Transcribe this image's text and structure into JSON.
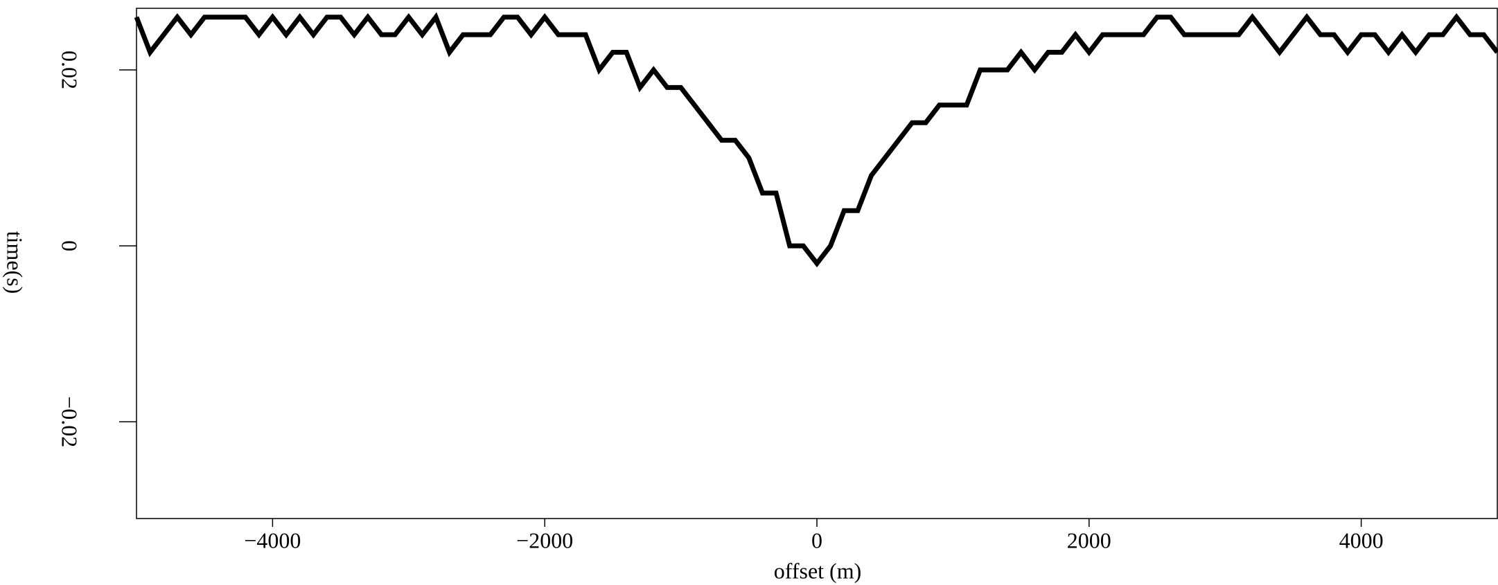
{
  "chart_data": {
    "type": "line",
    "xlabel": "offset (m)",
    "ylabel": "time(s)",
    "xlim": [
      -5000,
      5000
    ],
    "ylim": [
      -0.031,
      0.027
    ],
    "xticks": [
      {
        "value": -4000,
        "label": "−4000"
      },
      {
        "value": -2000,
        "label": "−2000"
      },
      0,
      2000,
      4000
    ],
    "yticks": [
      {
        "value": -0.02,
        "label": "−0.02"
      },
      0,
      0.02
    ],
    "x": [
      -5000,
      -4900,
      -4800,
      -4700,
      -4600,
      -4500,
      -4400,
      -4300,
      -4200,
      -4100,
      -4000,
      -3900,
      -3800,
      -3700,
      -3600,
      -3500,
      -3400,
      -3300,
      -3200,
      -3100,
      -3000,
      -2900,
      -2800,
      -2700,
      -2600,
      -2500,
      -2400,
      -2300,
      -2200,
      -2100,
      -2000,
      -1900,
      -1800,
      -1700,
      -1600,
      -1500,
      -1400,
      -1300,
      -1200,
      -1100,
      -1000,
      -900,
      -800,
      -700,
      -600,
      -500,
      -400,
      -300,
      -200,
      -100,
      0,
      100,
      200,
      300,
      400,
      500,
      600,
      700,
      800,
      900,
      1000,
      1100,
      1200,
      1300,
      1400,
      1500,
      1600,
      1700,
      1800,
      1900,
      2000,
      2100,
      2200,
      2300,
      2400,
      2500,
      2600,
      2700,
      2800,
      2900,
      3000,
      3100,
      3200,
      3300,
      3400,
      3500,
      3600,
      3700,
      3800,
      3900,
      4000,
      4100,
      4200,
      4300,
      4400,
      4500,
      4600,
      4700,
      4800,
      4900,
      5000
    ],
    "series": [
      {
        "color": "#000000",
        "values": [
          0.026,
          0.022,
          0.024,
          0.026,
          0.024,
          0.026,
          0.026,
          0.026,
          0.026,
          0.024,
          0.026,
          0.024,
          0.026,
          0.024,
          0.026,
          0.026,
          0.024,
          0.026,
          0.024,
          0.024,
          0.026,
          0.024,
          0.026,
          0.022,
          0.024,
          0.024,
          0.024,
          0.026,
          0.026,
          0.024,
          0.026,
          0.024,
          0.024,
          0.024,
          0.02,
          0.022,
          0.022,
          0.018,
          0.02,
          0.018,
          0.018,
          0.016,
          0.014,
          0.012,
          0.012,
          0.01,
          0.006,
          0.006,
          0.0,
          0.0,
          -0.002,
          0.0,
          0.004,
          0.004,
          0.008,
          0.01,
          0.012,
          0.014,
          0.014,
          0.016,
          0.016,
          0.016,
          0.02,
          0.02,
          0.02,
          0.022,
          0.02,
          0.022,
          0.022,
          0.024,
          0.022,
          0.024,
          0.024,
          0.024,
          0.024,
          0.026,
          0.026,
          0.024,
          0.024,
          0.024,
          0.024,
          0.024,
          0.026,
          0.024,
          0.022,
          0.024,
          0.026,
          0.024,
          0.024,
          0.022,
          0.024,
          0.024,
          0.022,
          0.024,
          0.022,
          0.024,
          0.024,
          0.026,
          0.024,
          0.024,
          0.022
        ]
      }
    ]
  }
}
